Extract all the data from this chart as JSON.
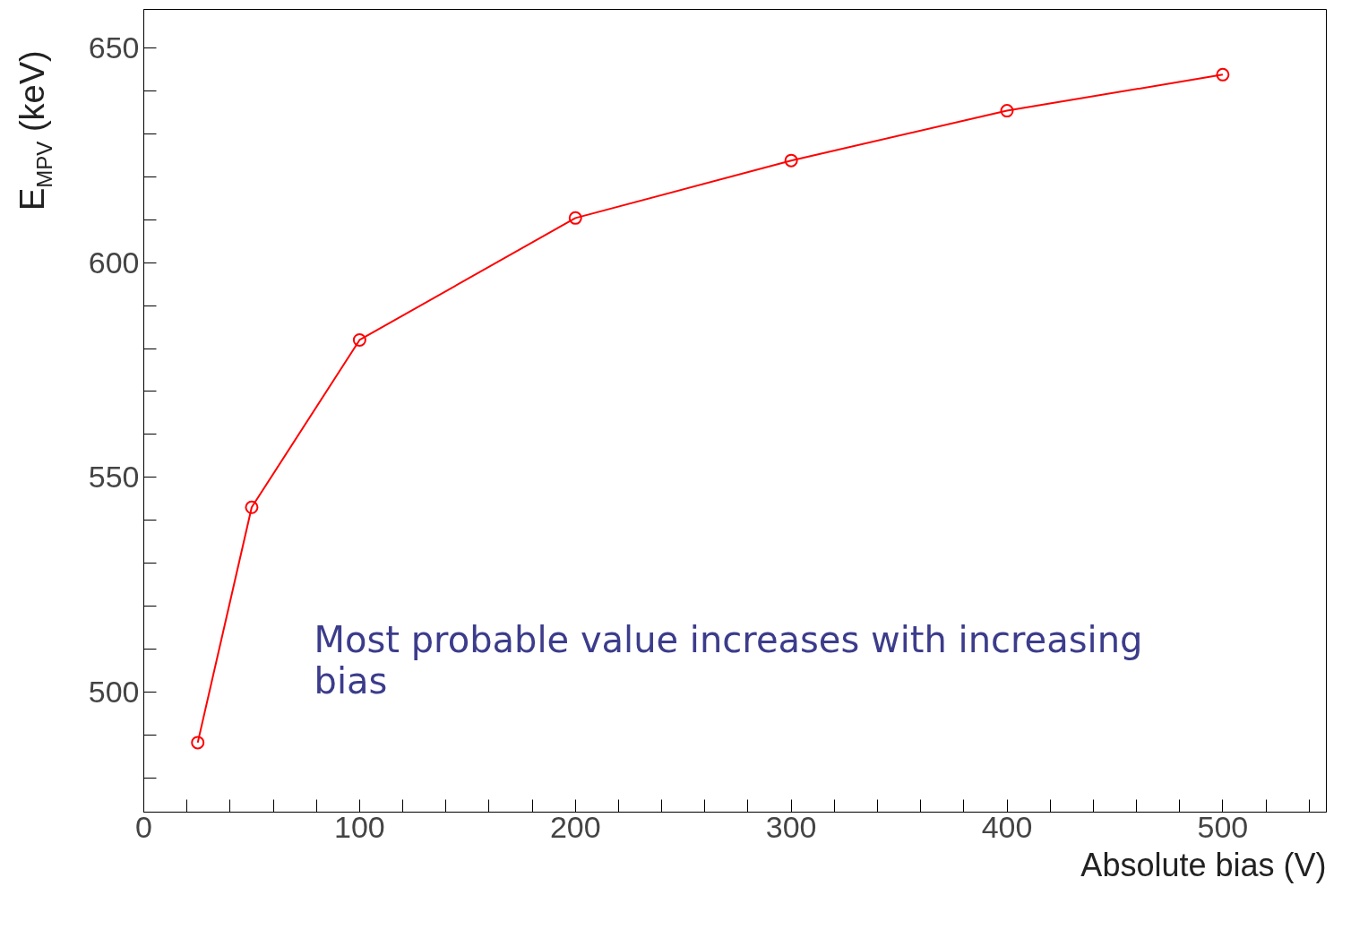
{
  "chart_data": {
    "type": "line",
    "xlabel": "Absolute bias (V)",
    "ylabel": "E$_{MPV}$ (keV)",
    "x": [
      25,
      50,
      100,
      200,
      300,
      400,
      500
    ],
    "series": [
      {
        "color": "#ff0000",
        "values": [
          488.2,
          543.0,
          582.0,
          610.4,
          623.8,
          635.4,
          643.8
        ]
      }
    ],
    "xlim": [
      0,
      548
    ],
    "ylim": [
      472,
      659
    ],
    "xticks": [
      0,
      {
        "value": 20,
        "label": null
      },
      {
        "value": 40,
        "label": null
      },
      {
        "value": 60,
        "label": null
      },
      {
        "value": 80,
        "label": null
      },
      100,
      {
        "value": 120,
        "label": null
      },
      {
        "value": 140,
        "label": null
      },
      {
        "value": 160,
        "label": null
      },
      {
        "value": 180,
        "label": null
      },
      200,
      {
        "value": 220,
        "label": null
      },
      {
        "value": 240,
        "label": null
      },
      {
        "value": 260,
        "label": null
      },
      {
        "value": 280,
        "label": null
      },
      300,
      {
        "value": 320,
        "label": null
      },
      {
        "value": 340,
        "label": null
      },
      {
        "value": 360,
        "label": null
      },
      {
        "value": 380,
        "label": null
      },
      400,
      {
        "value": 420,
        "label": null
      },
      {
        "value": 440,
        "label": null
      },
      {
        "value": 460,
        "label": null
      },
      {
        "value": 480,
        "label": null
      },
      500,
      {
        "value": 520,
        "label": null
      },
      {
        "value": 540,
        "label": null
      }
    ],
    "yticks": [
      {
        "value": 480,
        "label": null
      },
      {
        "value": 490,
        "label": null
      },
      500,
      {
        "value": 510,
        "label": null
      },
      {
        "value": 520,
        "label": null
      },
      {
        "value": 530,
        "label": null
      },
      {
        "value": 540,
        "label": null
      },
      550,
      {
        "value": 560,
        "label": null
      },
      {
        "value": 570,
        "label": null
      },
      {
        "value": 580,
        "label": null
      },
      {
        "value": 590,
        "label": null
      },
      600,
      {
        "value": 610,
        "label": null
      },
      {
        "value": 620,
        "label": null
      },
      {
        "value": 630,
        "label": null
      },
      {
        "value": 640,
        "label": null
      },
      650
    ],
    "marker": "circle",
    "grid": false,
    "annotations": [
      "Most probable value increases with increasing bias"
    ]
  }
}
